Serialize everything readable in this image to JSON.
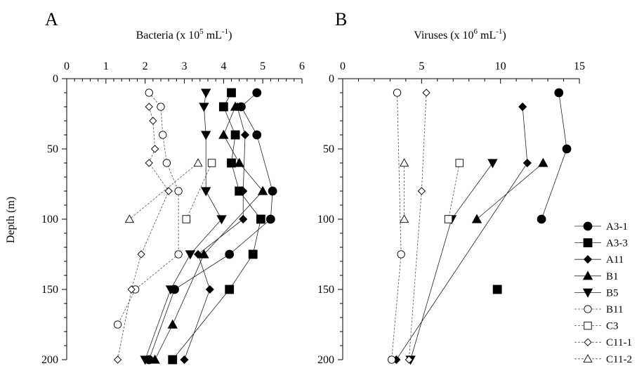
{
  "chart_data": [
    {
      "panel_label": "A",
      "type": "line",
      "xlabel": "Bacteria (x 10",
      "xlabel_sup": "5",
      "xlabel_unit": " mL",
      "xlabel_unit_sup": "-1",
      "xlabel_close": ")",
      "ylabel": "Depth (m)",
      "xlim": [
        0,
        6
      ],
      "ylim": [
        0,
        200
      ],
      "x_ticks": [
        0,
        1,
        2,
        3,
        4,
        5,
        6
      ],
      "y_ticks": [
        0,
        50,
        100,
        150,
        200
      ],
      "series": [
        {
          "name": "A3-1",
          "marker": "circle-filled",
          "line": "solid",
          "points": [
            [
              4.85,
              10
            ],
            [
              4.45,
              20
            ],
            [
              4.85,
              40
            ],
            [
              5.25,
              80
            ],
            [
              5.2,
              100
            ],
            [
              4.15,
              125
            ],
            [
              2.75,
              150
            ],
            [
              2.1,
              200
            ]
          ]
        },
        {
          "name": "A3-3",
          "marker": "square-filled",
          "line": "solid",
          "points": [
            [
              4.2,
              10
            ],
            [
              4.0,
              20
            ],
            [
              4.3,
              40
            ],
            [
              4.2,
              60
            ],
            [
              4.4,
              80
            ],
            [
              4.95,
              100
            ],
            [
              4.75,
              125
            ],
            [
              4.15,
              150
            ],
            [
              2.7,
              200
            ]
          ]
        },
        {
          "name": "A11",
          "marker": "diamond-filled",
          "line": "solid",
          "points": [
            [
              4.35,
              20
            ],
            [
              4.55,
              40
            ],
            [
              4.5,
              80
            ],
            [
              4.5,
              100
            ],
            [
              3.35,
              125
            ],
            [
              3.65,
              150
            ],
            [
              3.0,
              200
            ]
          ]
        },
        {
          "name": "B1",
          "marker": "triangle-up-filled",
          "line": "solid",
          "points": [
            [
              4.3,
              20
            ],
            [
              4.0,
              40
            ],
            [
              4.4,
              60
            ],
            [
              5.0,
              80
            ],
            [
              3.5,
              125
            ],
            [
              2.7,
              175
            ],
            [
              2.25,
              200
            ]
          ]
        },
        {
          "name": "B5",
          "marker": "triangle-down-filled",
          "line": "solid",
          "points": [
            [
              3.55,
              10
            ],
            [
              3.5,
              20
            ],
            [
              3.55,
              40
            ],
            [
              3.55,
              80
            ],
            [
              3.95,
              100
            ],
            [
              3.15,
              125
            ],
            [
              2.65,
              150
            ],
            [
              2.0,
              200
            ]
          ]
        },
        {
          "name": "B11",
          "marker": "circle-open",
          "line": "dashed",
          "points": [
            [
              2.1,
              10
            ],
            [
              2.4,
              20
            ],
            [
              2.45,
              40
            ],
            [
              2.55,
              60
            ],
            [
              2.85,
              80
            ],
            [
              2.85,
              125
            ],
            [
              1.75,
              150
            ],
            [
              1.3,
              175
            ]
          ]
        },
        {
          "name": "C3",
          "marker": "square-open",
          "line": "dashed",
          "points": [
            [
              3.7,
              60
            ],
            [
              3.05,
              100
            ]
          ]
        },
        {
          "name": "C11-1",
          "marker": "diamond-open",
          "line": "dashed",
          "points": [
            [
              2.1,
              20
            ],
            [
              2.2,
              30
            ],
            [
              2.25,
              50
            ],
            [
              2.1,
              60
            ],
            [
              2.6,
              80
            ],
            [
              1.9,
              125
            ],
            [
              1.65,
              150
            ],
            [
              1.3,
              200
            ]
          ]
        },
        {
          "name": "C11-2",
          "marker": "triangle-up-open",
          "line": "dashed",
          "points": [
            [
              3.35,
              60
            ],
            [
              1.6,
              100
            ]
          ]
        }
      ]
    },
    {
      "panel_label": "B",
      "type": "line",
      "xlabel": "Viruses (x 10",
      "xlabel_sup": "6",
      "xlabel_unit": " mL",
      "xlabel_unit_sup": "-1",
      "xlabel_close": ")",
      "xlim": [
        0,
        15
      ],
      "ylim": [
        0,
        200
      ],
      "x_ticks": [
        0,
        5,
        10,
        15
      ],
      "y_ticks": [
        0,
        50,
        100,
        150,
        200
      ],
      "series": [
        {
          "name": "A3-1",
          "marker": "circle-filled",
          "line": "solid",
          "points": [
            [
              13.7,
              10
            ],
            [
              14.2,
              50
            ],
            [
              12.6,
              100
            ]
          ]
        },
        {
          "name": "A3-3",
          "marker": "square-filled",
          "line": "solid",
          "points": [
            [
              9.8,
              150
            ]
          ]
        },
        {
          "name": "A11",
          "marker": "diamond-filled",
          "line": "solid",
          "points": [
            [
              11.4,
              20
            ],
            [
              11.7,
              60
            ],
            [
              3.4,
              200
            ]
          ]
        },
        {
          "name": "B1",
          "marker": "triangle-up-filled",
          "line": "solid",
          "points": [
            [
              12.7,
              60
            ],
            [
              8.5,
              100
            ]
          ]
        },
        {
          "name": "B5",
          "marker": "triangle-down-filled",
          "line": "solid",
          "points": [
            [
              9.5,
              60
            ],
            [
              6.9,
              100
            ],
            [
              4.3,
              200
            ]
          ]
        },
        {
          "name": "B11",
          "marker": "circle-open",
          "line": "dashed",
          "points": [
            [
              3.45,
              10
            ],
            [
              3.7,
              125
            ],
            [
              3.1,
              200
            ]
          ]
        },
        {
          "name": "C3",
          "marker": "square-open",
          "line": "dashed",
          "points": [
            [
              7.4,
              60
            ],
            [
              6.7,
              100
            ]
          ]
        },
        {
          "name": "C11-1",
          "marker": "diamond-open",
          "line": "dashed",
          "points": [
            [
              5.3,
              10
            ],
            [
              5.0,
              80
            ],
            [
              4.2,
              200
            ]
          ]
        },
        {
          "name": "C11-2",
          "marker": "triangle-up-open",
          "line": "dashed",
          "points": [
            [
              3.9,
              60
            ],
            [
              3.9,
              100
            ]
          ]
        }
      ]
    }
  ],
  "legend": {
    "placement": "right",
    "items": [
      {
        "name": "A3-1",
        "marker": "circle-filled",
        "line": "solid"
      },
      {
        "name": "A3-3",
        "marker": "square-filled",
        "line": "solid"
      },
      {
        "name": "A11",
        "marker": "diamond-filled",
        "line": "solid"
      },
      {
        "name": "B1",
        "marker": "triangle-up-filled",
        "line": "solid"
      },
      {
        "name": "B5",
        "marker": "triangle-down-filled",
        "line": "solid"
      },
      {
        "name": "B11",
        "marker": "circle-open",
        "line": "dashed"
      },
      {
        "name": "C3",
        "marker": "square-open",
        "line": "dashed"
      },
      {
        "name": "C11-1",
        "marker": "diamond-open",
        "line": "dashed"
      },
      {
        "name": "C11-2",
        "marker": "triangle-up-open",
        "line": "dashed"
      }
    ]
  }
}
